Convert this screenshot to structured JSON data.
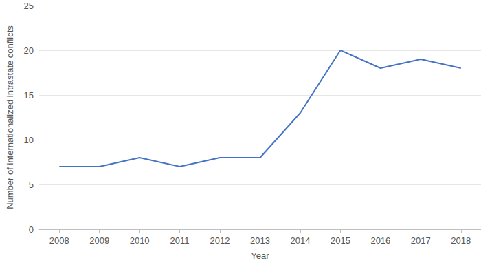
{
  "chart_data": {
    "type": "line",
    "x_label": "Year",
    "y_label": "Number of internationalized intrastate conflicts",
    "categories": [
      "2008",
      "2009",
      "2010",
      "2011",
      "2012",
      "2013",
      "2014",
      "2015",
      "2016",
      "2017",
      "2018"
    ],
    "values": [
      7,
      7,
      8,
      7,
      8,
      8,
      13,
      20,
      18,
      19,
      18
    ],
    "color": "#4472c4",
    "marker": "none",
    "ylim": [
      0,
      25
    ],
    "yticks": [
      0,
      5,
      10,
      15,
      20,
      25
    ],
    "grid": true
  }
}
